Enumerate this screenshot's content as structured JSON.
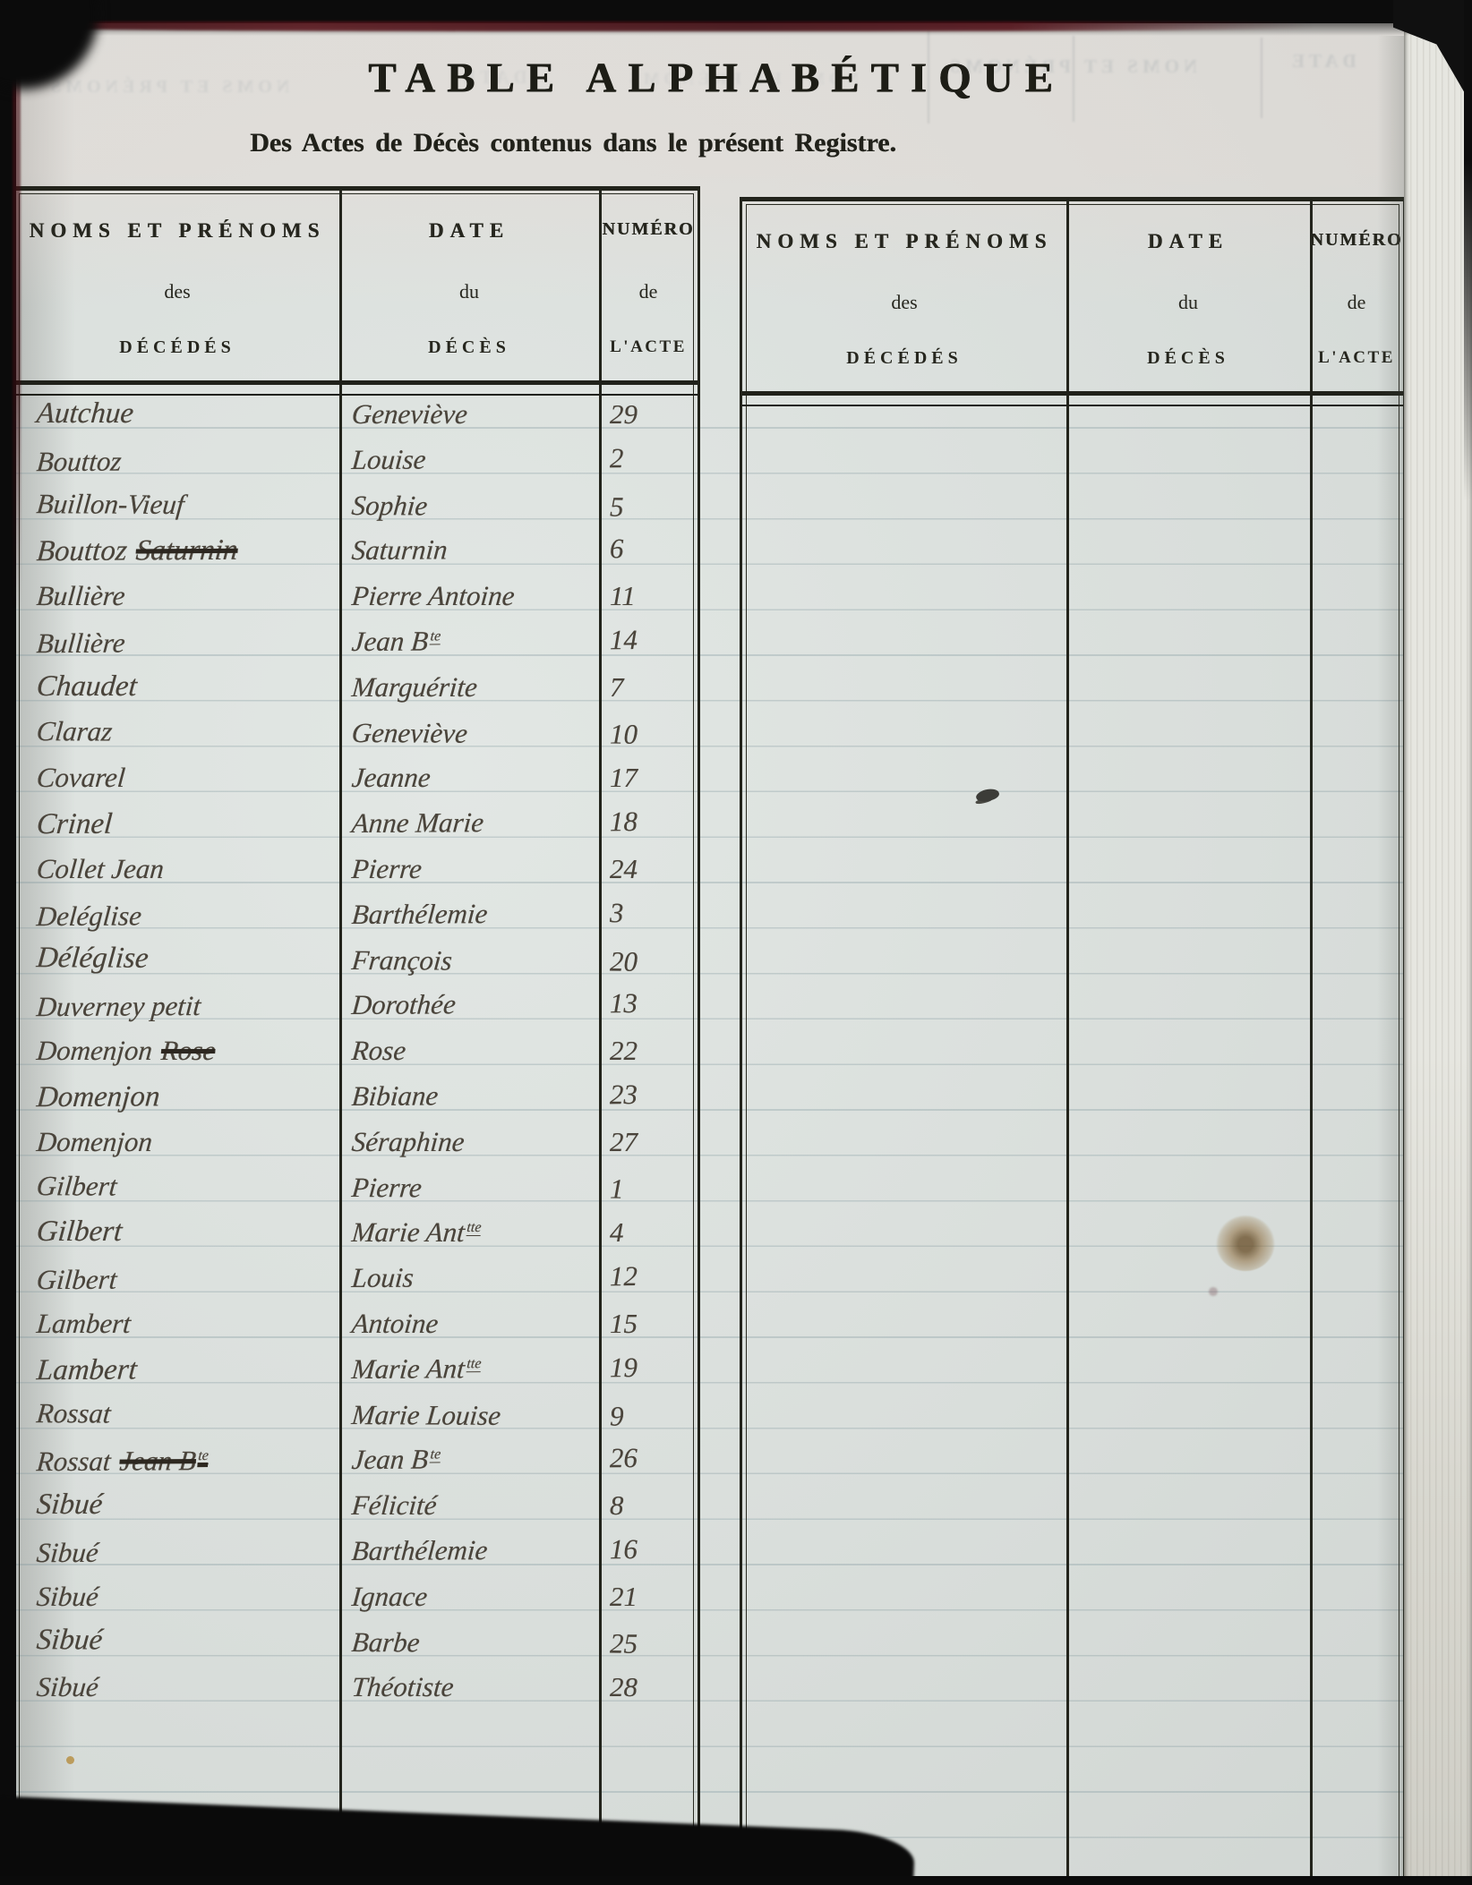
{
  "header": {
    "title": "TABLE ALPHABÉTIQUE",
    "subtitle": "Des Actes de Décès contenus dans le présent Registre."
  },
  "columns": {
    "names": {
      "l1": "NOMS ET PRÉNOMS",
      "l2": "des",
      "l3": "DÉCÉDÉS"
    },
    "date": {
      "l1": "DATE",
      "l2": "du",
      "l3": "DÉCÈS"
    },
    "numero": {
      "l1": "NUMÉRO",
      "l2": "de",
      "l3": "L'ACTE"
    }
  },
  "left_table": {
    "rows": [
      {
        "name": "Autchue",
        "date": "Geneviève",
        "num": "29"
      },
      {
        "name": "Bouttoz",
        "date": "Louise",
        "num": "2"
      },
      {
        "name": "Buillon-Vieuf",
        "date": "Sophie",
        "num": "5"
      },
      {
        "name": "Bouttoz",
        "struck": "Saturnin",
        "date": "Saturnin",
        "num": "6"
      },
      {
        "name": "Bullière",
        "date": "Pierre Antoine",
        "num": "11"
      },
      {
        "name": "Bullière",
        "date": "Jean B",
        "sup": "te",
        "num": "14"
      },
      {
        "name": "Chaudet",
        "date": "Marguérite",
        "num": "7"
      },
      {
        "name": "Claraz",
        "date": "Geneviève",
        "num": "10"
      },
      {
        "name": "Covarel",
        "date": "Jeanne",
        "num": "17"
      },
      {
        "name": "Crinel",
        "date": "Anne Marie",
        "num": "18"
      },
      {
        "name": "Collet Jean",
        "date": "Pierre",
        "num": "24"
      },
      {
        "name": "Deléglise",
        "date": "Barthélemie",
        "num": "3"
      },
      {
        "name": "Déléglise",
        "date": "François",
        "num": "20"
      },
      {
        "name": "Duverney petit",
        "date": "Dorothée",
        "num": "13"
      },
      {
        "name": "Domenjon",
        "struck": "Rose",
        "date": "Rose",
        "num": "22"
      },
      {
        "name": "Domenjon",
        "date": "Bibiane",
        "num": "23"
      },
      {
        "name": "Domenjon",
        "date": "Séraphine",
        "num": "27"
      },
      {
        "name": "Gilbert",
        "date": "Pierre",
        "num": "1"
      },
      {
        "name": "Gilbert",
        "date": "Marie Ant",
        "sup": "tte",
        "num": "4"
      },
      {
        "name": "Gilbert",
        "date": "Louis",
        "num": "12"
      },
      {
        "name": "Lambert",
        "date": "Antoine",
        "num": "15"
      },
      {
        "name": "Lambert",
        "date": "Marie Ant",
        "sup": "tte",
        "num": "19"
      },
      {
        "name": "Rossat",
        "date": "Marie Louise",
        "num": "9"
      },
      {
        "name": "Rossat",
        "struck": "Jean B",
        "struck_sup": "te",
        "date": "Jean B",
        "sup": "te",
        "num": "26"
      },
      {
        "name": "Sibué",
        "date": "Félicité",
        "num": "8"
      },
      {
        "name": "Sibué",
        "date": "Barthélemie",
        "num": "16"
      },
      {
        "name": "Sibué",
        "date": "Ignace",
        "num": "21"
      },
      {
        "name": "Sibué",
        "date": "Barbe",
        "num": "25"
      },
      {
        "name": "Sibué",
        "date": "Théotiste",
        "num": "28"
      }
    ]
  },
  "right_table": {
    "rows": []
  },
  "ghosts": {
    "g1": "NOMS ET PRÉNOMS",
    "g2": "DATE",
    "g3": "NOMS ET PRÉNOMS",
    "g4": "NOMS ET PRÉNOMS",
    "g5": "DATE"
  },
  "colors": {
    "paper": "#d9dedb",
    "table_line": "#22231b",
    "printed_ink": "#1d1d16",
    "handwriting_ink": "#4a443b",
    "cover_red": "#4a1016",
    "stain": "#8a6a3a"
  }
}
